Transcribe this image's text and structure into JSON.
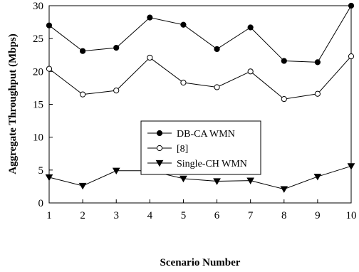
{
  "chart_data": {
    "type": "line",
    "xlabel": "Scenario Number",
    "ylabel": "Aggregate Throughput (Mbps)",
    "x": [
      1,
      2,
      3,
      4,
      5,
      6,
      7,
      8,
      9,
      10
    ],
    "xlim": [
      1,
      10
    ],
    "ylim": [
      0,
      30
    ],
    "xticks": [
      "1",
      "2",
      "3",
      "4",
      "5",
      "6",
      "7",
      "8",
      "9",
      "10"
    ],
    "yticks": [
      "0",
      "5",
      "10",
      "15",
      "20",
      "25",
      "30"
    ],
    "grid": false,
    "legend_position": "center",
    "series": [
      {
        "name": "DB-CA WMN",
        "marker": "filled-circle",
        "values": [
          27.0,
          23.1,
          23.6,
          28.2,
          27.1,
          23.4,
          26.7,
          21.6,
          21.4,
          30.0
        ]
      },
      {
        "name": "[8]",
        "marker": "open-circle",
        "values": [
          20.4,
          16.5,
          17.1,
          22.1,
          18.3,
          17.6,
          20.0,
          15.8,
          16.6,
          22.3
        ]
      },
      {
        "name": "Single-CH WMN",
        "marker": "filled-triangle-down",
        "values": [
          3.9,
          2.6,
          4.9,
          4.9,
          3.7,
          3.3,
          3.4,
          2.1,
          4.0,
          5.6
        ]
      }
    ]
  }
}
